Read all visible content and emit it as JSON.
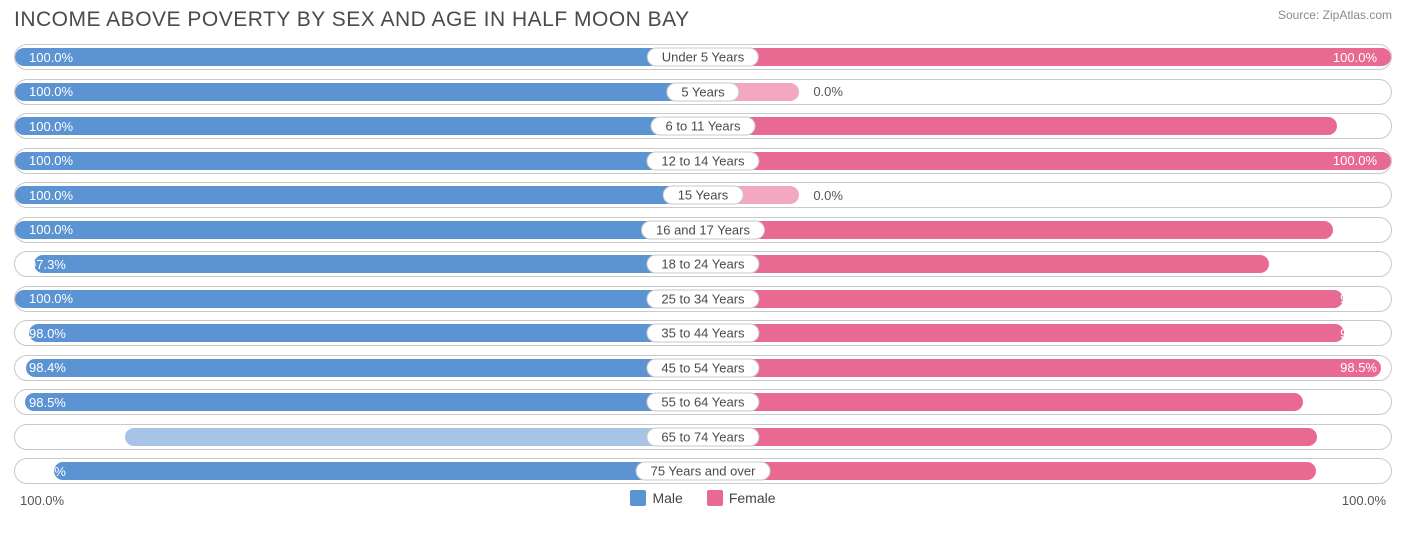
{
  "title": "INCOME ABOVE POVERTY BY SEX AND AGE IN HALF MOON BAY",
  "source": "Source: ZipAtlas.com",
  "axis": {
    "left": "100.0%",
    "right": "100.0%"
  },
  "legend": [
    {
      "label": "Male",
      "color": "#5b93d3"
    },
    {
      "label": "Female",
      "color": "#e86a92"
    }
  ],
  "colors": {
    "male": "#5b93d3",
    "male_light": "#a7c4e6",
    "female": "#e86a92",
    "female_light": "#f3a7c0",
    "border": "#c9c9c9",
    "bg": "#ffffff",
    "text": "#4a4a4a"
  },
  "max": 100.0,
  "min_bar_pct_for_inside_label": 20,
  "light_threshold": 86.0,
  "rows": [
    {
      "label": "Under 5 Years",
      "male": 100.0,
      "female": 100.0
    },
    {
      "label": "5 Years",
      "male": 100.0,
      "female": 0.0,
      "female_stub": 14
    },
    {
      "label": "6 to 11 Years",
      "male": 100.0,
      "female": 92.1
    },
    {
      "label": "12 to 14 Years",
      "male": 100.0,
      "female": 100.0
    },
    {
      "label": "15 Years",
      "male": 100.0,
      "female": 0.0,
      "female_stub": 14
    },
    {
      "label": "16 and 17 Years",
      "male": 100.0,
      "female": 91.6
    },
    {
      "label": "18 to 24 Years",
      "male": 97.3,
      "female": 82.3
    },
    {
      "label": "25 to 34 Years",
      "male": 100.0,
      "female": 93.0
    },
    {
      "label": "35 to 44 Years",
      "male": 98.0,
      "female": 93.1
    },
    {
      "label": "45 to 54 Years",
      "male": 98.4,
      "female": 98.5
    },
    {
      "label": "55 to 64 Years",
      "male": 98.5,
      "female": 87.2
    },
    {
      "label": "65 to 74 Years",
      "male": 84.0,
      "female": 89.2
    },
    {
      "label": "75 Years and over",
      "male": 94.4,
      "female": 89.1
    }
  ]
}
